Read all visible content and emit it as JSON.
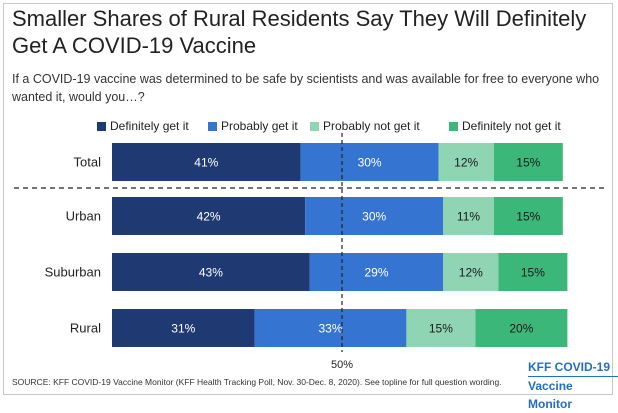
{
  "title": "Smaller Shares of Rural Residents Say They Will Definitely Get A COVID-19 Vaccine",
  "subtitle": "If a COVID-19 vaccine was determined to be safe by scientists and was available for free to everyone who wanted it, would you…?",
  "source": "SOURCE: KFF COVID-19 Vaccine Monitor (KFF Health Tracking Poll, Nov. 30-Dec. 8, 2020). See topline for full question wording.",
  "brand": {
    "line1": "KFF COVID-19",
    "line2": "Vaccine Monitor"
  },
  "colors": {
    "definitely_get": "#1f3a73",
    "probably_get": "#3575d1",
    "probably_not": "#8fd4b3",
    "definitely_not": "#3cb77a",
    "brand": "#1f6fc4"
  },
  "chart_data": {
    "type": "bar",
    "orientation": "horizontal",
    "stacked": true,
    "categories": [
      "Total",
      "Urban",
      "Suburban",
      "Rural"
    ],
    "series": [
      {
        "name": "Definitely get it",
        "values": [
          41,
          42,
          43,
          31
        ],
        "labels": [
          "41%",
          "42%",
          "43%",
          "31%"
        ],
        "color": "#1f3a73"
      },
      {
        "name": "Probably get it",
        "values": [
          30,
          30,
          29,
          33
        ],
        "labels": [
          "30%",
          "30%",
          "29%",
          "33%"
        ],
        "color": "#3575d1"
      },
      {
        "name": "Probably not get it",
        "values": [
          12,
          11,
          12,
          15
        ],
        "labels": [
          "12%",
          "11%",
          "12%",
          "15%"
        ],
        "color": "#8fd4b3"
      },
      {
        "name": "Definitely not get it",
        "values": [
          15,
          15,
          15,
          20
        ],
        "labels": [
          "15%",
          "15%",
          "15%",
          "20%"
        ],
        "color": "#3cb77a"
      }
    ],
    "reference_line": {
      "value": 50,
      "label": "50%"
    },
    "xlim": [
      0,
      100
    ],
    "legend": "top",
    "grid": false
  }
}
